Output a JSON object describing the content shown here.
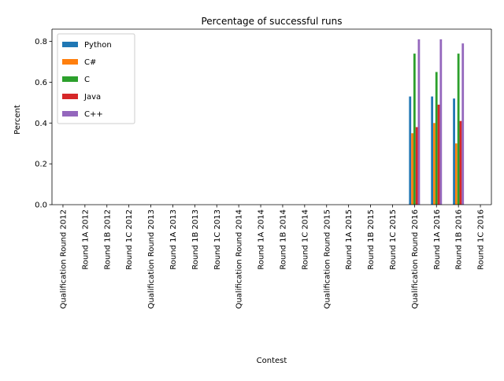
{
  "chart_data": {
    "type": "bar",
    "title": "Percentage of successful runs",
    "xlabel": "Contest",
    "ylabel": "Percent",
    "ylim": [
      0,
      0.86
    ],
    "yticks": [
      "0.0",
      "0.2",
      "0.4",
      "0.6",
      "0.8"
    ],
    "grid": false,
    "legend_position": "top-left",
    "categories": [
      "Qualification Round 2012",
      "Round 1A 2012",
      "Round 1B 2012",
      "Round 1C 2012",
      "Qualification Round 2013",
      "Round 1A 2013",
      "Round 1B 2013",
      "Round 1C 2013",
      "Qualification Round 2014",
      "Round 1A 2014",
      "Round 1B 2014",
      "Round 1C 2014",
      "Qualification Round 2015",
      "Round 1A 2015",
      "Round 1B 2015",
      "Round 1C 2015",
      "Qualification Round 2016",
      "Round 1A 2016",
      "Round 1B 2016",
      "Round 1C 2016"
    ],
    "series": [
      {
        "name": "Python",
        "color": "#1f77b4",
        "values": [
          0,
          0,
          0,
          0,
          0,
          0,
          0,
          0,
          0,
          0,
          0,
          0,
          0,
          0,
          0,
          0,
          0.53,
          0.53,
          0.52,
          0
        ]
      },
      {
        "name": "C#",
        "color": "#ff7f0e",
        "values": [
          0,
          0,
          0,
          0,
          0,
          0,
          0,
          0,
          0,
          0,
          0,
          0,
          0,
          0,
          0,
          0,
          0.35,
          0.4,
          0.3,
          0
        ]
      },
      {
        "name": "C",
        "color": "#2ca02c",
        "values": [
          0,
          0,
          0,
          0,
          0,
          0,
          0,
          0,
          0,
          0,
          0,
          0,
          0,
          0,
          0,
          0,
          0.74,
          0.65,
          0.74,
          0
        ]
      },
      {
        "name": "Java",
        "color": "#d62728",
        "values": [
          0,
          0,
          0,
          0,
          0,
          0,
          0,
          0,
          0,
          0,
          0,
          0,
          0,
          0,
          0,
          0,
          0.38,
          0.49,
          0.41,
          0
        ]
      },
      {
        "name": "C++",
        "color": "#9467bd",
        "values": [
          0,
          0,
          0,
          0,
          0,
          0,
          0,
          0,
          0,
          0,
          0,
          0,
          0,
          0,
          0,
          0,
          0.81,
          0.81,
          0.79,
          0
        ]
      }
    ]
  }
}
